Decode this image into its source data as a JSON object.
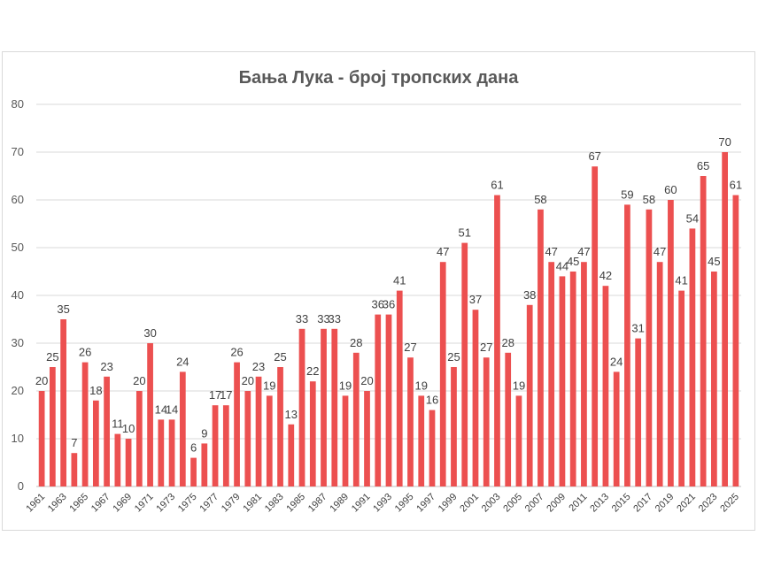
{
  "chart_data": {
    "type": "bar",
    "title": "Бања Лука - број тропских дана",
    "xlabel": "",
    "ylabel": "",
    "ylim": [
      0,
      80
    ],
    "yticks": [
      0,
      10,
      20,
      30,
      40,
      50,
      60,
      70,
      80
    ],
    "grid": true,
    "legend": "none",
    "bar_color": "#ec5050",
    "categories": [
      "1961",
      "1962",
      "1963",
      "1964",
      "1965",
      "1966",
      "1967",
      "1968",
      "1969",
      "1970",
      "1971",
      "1972",
      "1973",
      "1974",
      "1975",
      "1976",
      "1977",
      "1978",
      "1979",
      "1980",
      "1981",
      "1982",
      "1983",
      "1984",
      "1985",
      "1986",
      "1987",
      "1988",
      "1989",
      "1990",
      "1991",
      "1992",
      "1993",
      "1994",
      "1995",
      "1996",
      "1997",
      "1998",
      "1999",
      "2000",
      "2001",
      "2002",
      "2003",
      "2004",
      "2005",
      "2006",
      "2007",
      "2008",
      "2009",
      "2010",
      "2011",
      "2012",
      "2013",
      "2014",
      "2015",
      "2016",
      "2017",
      "2018",
      "2019",
      "2020",
      "2021",
      "2022",
      "2023",
      "2024",
      "2025"
    ],
    "shown_tick_labels": [
      "1961",
      "1963",
      "1965",
      "1967",
      "1969",
      "1971",
      "1973",
      "1975",
      "1977",
      "1979",
      "1981",
      "1983",
      "1985",
      "1987",
      "1989",
      "1991",
      "1993",
      "1995",
      "1997",
      "1999",
      "2001",
      "2003",
      "2005",
      "2007",
      "2009",
      "2011",
      "2013",
      "2015",
      "2017",
      "2019",
      "2021",
      "2023",
      "2025"
    ],
    "values": [
      20,
      25,
      35,
      7,
      26,
      18,
      23,
      11,
      10,
      20,
      30,
      14,
      14,
      24,
      6,
      9,
      17,
      17,
      26,
      20,
      23,
      19,
      25,
      13,
      33,
      22,
      33,
      33,
      19,
      28,
      20,
      36,
      36,
      41,
      27,
      19,
      16,
      47,
      25,
      51,
      37,
      27,
      61,
      28,
      19,
      38,
      58,
      47,
      44,
      45,
      47,
      67,
      42,
      24,
      59,
      31,
      58,
      47,
      60,
      41,
      54,
      65,
      45,
      70,
      61
    ]
  }
}
